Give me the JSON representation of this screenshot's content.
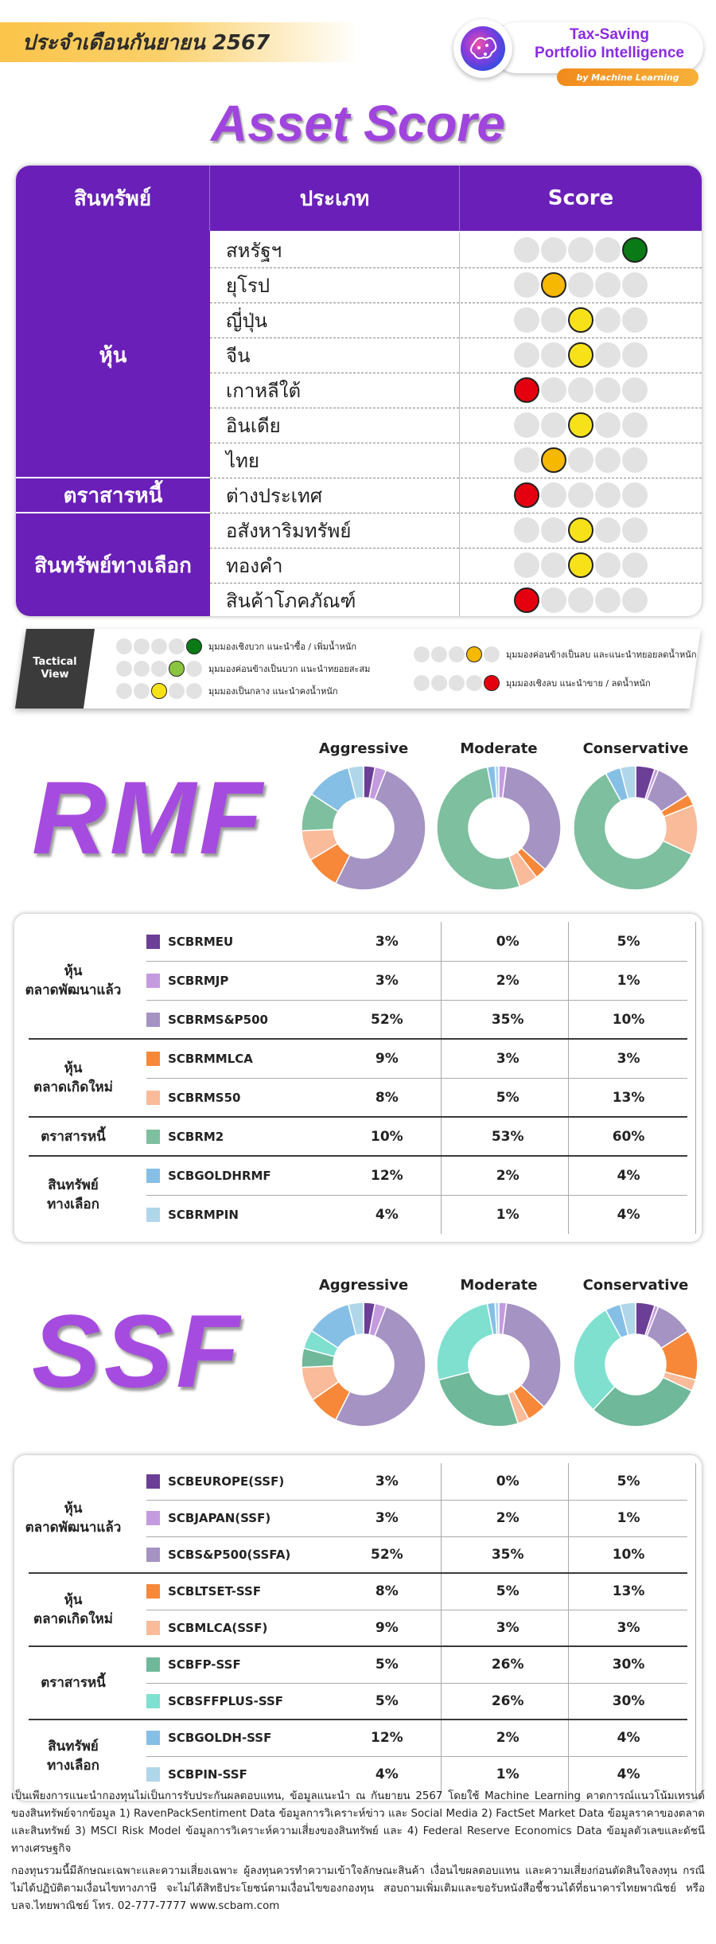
{
  "header": {
    "date_banner": "ประจำเดือนกันยายน 2567",
    "brand_title": [
      "Tax-Saving",
      "Portfolio Intelligence"
    ],
    "brand_sub": "by Machine Learning",
    "brand_logo": "brain-ai-logo"
  },
  "asset_score": {
    "title": "Asset Score",
    "columns": [
      "สินทรัพย์",
      "ประเภท",
      "Score"
    ],
    "groups": [
      {
        "label": "หุ้น",
        "start": 0,
        "count": 7
      },
      {
        "label": "ตราสารหนี้",
        "start": 7,
        "count": 1
      },
      {
        "label": "สินทรัพย์ทางเลือก",
        "start": 8,
        "count": 3
      }
    ],
    "rows": [
      {
        "type": "สหรัฐฯ",
        "score": 5
      },
      {
        "type": "ยุโรป",
        "score": 2
      },
      {
        "type": "ญี่ปุ่น",
        "score": 3
      },
      {
        "type": "จีน",
        "score": 3
      },
      {
        "type": "เกาหลีใต้",
        "score": 1
      },
      {
        "type": "อินเดีย",
        "score": 3
      },
      {
        "type": "ไทย",
        "score": 2
      },
      {
        "type": "ต่างประเทศ",
        "score": 1
      },
      {
        "type": "อสังหาริมทรัพย์",
        "score": 3
      },
      {
        "type": "ทองคำ",
        "score": 3
      },
      {
        "type": "สินค้าโภคภัณฑ์",
        "score": 1
      }
    ],
    "score_colors": {
      "1": "#e5000f",
      "2": "#f6b800",
      "3": "#f7e21a",
      "4": "#8bc53f",
      "5": "#0a7a16"
    }
  },
  "legend": {
    "tag": "Tactical View",
    "items": [
      {
        "score": 5,
        "text": "มุมมองเชิงบวก แนะนำซื้อ / เพิ่มน้ำหนัก"
      },
      {
        "score": 4,
        "text": "มุมมองค่อนข้างเป็นบวก แนะนำทยอยสะสม"
      },
      {
        "score": 3,
        "text": "มุมมองเป็นกลาง แนะนำคงน้ำหนัก"
      },
      {
        "score": 2,
        "text": "มุมมองค่อนข้างเป็นลบ และแนะนำทยอยลดน้ำหนัก"
      },
      {
        "score": 1,
        "text": "มุมมองเชิงลบ แนะนำขาย / ลดน้ำหนัก"
      }
    ]
  },
  "funds": [
    {
      "title": "RMF",
      "profiles": [
        "Aggressive",
        "Moderate",
        "Conservative"
      ],
      "groups": [
        {
          "label": "หุ้น\nตลาดพัฒนาแล้ว",
          "start": 0,
          "count": 3
        },
        {
          "label": "หุ้น\nตลาดเกิดใหม่",
          "start": 3,
          "count": 2
        },
        {
          "label": "ตราสารหนี้",
          "start": 5,
          "count": 1
        },
        {
          "label": "สินทรัพย์\nทางเลือก",
          "start": 6,
          "count": 2
        }
      ],
      "rows": [
        {
          "code": "SCBRMEU",
          "color": "#6b3f96",
          "values": [
            "3%",
            "0%",
            "5%"
          ]
        },
        {
          "code": "SCBRMJP",
          "color": "#c49bdf",
          "values": [
            "3%",
            "2%",
            "1%"
          ]
        },
        {
          "code": "SCBRMS&P500",
          "color": "#a593c3",
          "values": [
            "52%",
            "35%",
            "10%"
          ]
        },
        {
          "code": "SCBRMMLCA",
          "color": "#f7883a",
          "values": [
            "9%",
            "3%",
            "3%"
          ]
        },
        {
          "code": "SCBRMS50",
          "color": "#f9bb9a",
          "values": [
            "8%",
            "5%",
            "13%"
          ]
        },
        {
          "code": "SCBRM2",
          "color": "#7dbf9e",
          "values": [
            "10%",
            "53%",
            "60%"
          ]
        },
        {
          "code": "SCBGOLDHRMF",
          "color": "#86bfe6",
          "values": [
            "12%",
            "2%",
            "4%"
          ]
        },
        {
          "code": "SCBRMPIN",
          "color": "#b0d6ea",
          "values": [
            "4%",
            "1%",
            "4%"
          ]
        }
      ]
    },
    {
      "title": "SSF",
      "profiles": [
        "Aggressive",
        "Moderate",
        "Conservative"
      ],
      "groups": [
        {
          "label": "หุ้น\nตลาดพัฒนาแล้ว",
          "start": 0,
          "count": 3
        },
        {
          "label": "หุ้น\nตลาดเกิดใหม่",
          "start": 3,
          "count": 2
        },
        {
          "label": "ตราสารหนี้",
          "start": 5,
          "count": 2
        },
        {
          "label": "สินทรัพย์\nทางเลือก",
          "start": 7,
          "count": 2
        }
      ],
      "rows": [
        {
          "code": "SCBEUROPE(SSF)",
          "color": "#6b3f96",
          "values": [
            "3%",
            "0%",
            "5%"
          ]
        },
        {
          "code": "SCBJAPAN(SSF)",
          "color": "#c49bdf",
          "values": [
            "3%",
            "2%",
            "1%"
          ]
        },
        {
          "code": "SCBS&P500(SSFA)",
          "color": "#a593c3",
          "values": [
            "52%",
            "35%",
            "10%"
          ]
        },
        {
          "code": "SCBLTSET-SSF",
          "color": "#f7883a",
          "values": [
            "8%",
            "5%",
            "13%"
          ]
        },
        {
          "code": "SCBMLCA(SSF)",
          "color": "#f9bb9a",
          "values": [
            "9%",
            "3%",
            "3%"
          ]
        },
        {
          "code": "SCBFP-SSF",
          "color": "#6fb89a",
          "values": [
            "5%",
            "26%",
            "30%"
          ]
        },
        {
          "code": "SCBSFFPLUS-SSF",
          "color": "#7fe0d0",
          "values": [
            "5%",
            "26%",
            "30%"
          ]
        },
        {
          "code": "SCBGOLDH-SSF",
          "color": "#86bfe6",
          "values": [
            "12%",
            "2%",
            "4%"
          ]
        },
        {
          "code": "SCBPIN-SSF",
          "color": "#b0d6ea",
          "values": [
            "4%",
            "1%",
            "4%"
          ]
        }
      ]
    }
  ],
  "chart_data": [
    {
      "type": "pie",
      "title": "Aggressive",
      "labels": [
        "SCBRMEU",
        "SCBRMJP",
        "SCBRMS&P500",
        "SCBRMMLCA",
        "SCBRMS50",
        "SCBRM2",
        "SCBGOLDHRMF",
        "SCBRMPIN"
      ],
      "values": [
        3,
        3,
        52,
        9,
        8,
        10,
        12,
        4
      ]
    },
    {
      "type": "pie",
      "title": "Moderate",
      "labels": [
        "SCBRMEU",
        "SCBRMJP",
        "SCBRMS&P500",
        "SCBRMMLCA",
        "SCBRMS50",
        "SCBRM2",
        "SCBGOLDHRMF",
        "SCBRMPIN"
      ],
      "values": [
        0,
        2,
        35,
        3,
        5,
        53,
        2,
        1
      ]
    },
    {
      "type": "pie",
      "title": "Conservative",
      "labels": [
        "SCBRMEU",
        "SCBRMJP",
        "SCBRMS&P500",
        "SCBRMMLCA",
        "SCBRMS50",
        "SCBRM2",
        "SCBGOLDHRMF",
        "SCBRMPIN"
      ],
      "values": [
        5,
        1,
        10,
        3,
        13,
        60,
        4,
        4
      ]
    },
    {
      "type": "pie",
      "title": "Aggressive",
      "labels": [
        "SCBEUROPE(SSF)",
        "SCBJAPAN(SSF)",
        "SCBS&P500(SSFA)",
        "SCBLTSET-SSF",
        "SCBMLCA(SSF)",
        "SCBFP-SSF",
        "SCBSFFPLUS-SSF",
        "SCBGOLDH-SSF",
        "SCBPIN-SSF"
      ],
      "values": [
        3,
        3,
        52,
        8,
        9,
        5,
        5,
        12,
        4
      ]
    },
    {
      "type": "pie",
      "title": "Moderate",
      "labels": [
        "SCBEUROPE(SSF)",
        "SCBJAPAN(SSF)",
        "SCBS&P500(SSFA)",
        "SCBLTSET-SSF",
        "SCBMLCA(SSF)",
        "SCBFP-SSF",
        "SCBSFFPLUS-SSF",
        "SCBGOLDH-SSF",
        "SCBPIN-SSF"
      ],
      "values": [
        0,
        2,
        35,
        5,
        3,
        26,
        26,
        2,
        1
      ]
    },
    {
      "type": "pie",
      "title": "Conservative",
      "labels": [
        "SCBEUROPE(SSF)",
        "SCBJAPAN(SSF)",
        "SCBS&P500(SSFA)",
        "SCBLTSET-SSF",
        "SCBMLCA(SSF)",
        "SCBFP-SSF",
        "SCBSFFPLUS-SSF",
        "SCBGOLDH-SSF",
        "SCBPIN-SSF"
      ],
      "values": [
        5,
        1,
        10,
        13,
        3,
        30,
        30,
        4,
        4
      ]
    }
  ],
  "disclaimer": [
    "เป็นเพียงการแนะนำกองทุนไม่เป็นการรับประกันผลตอบแทน, ข้อมูลแนะนำ ณ กันยายน 2567 โดยใช้ Machine Learning คาดการณ์แนวโน้มเทรนด์ของสินทรัพย์จากข้อมูล 1) RavenPackSentiment Data ข้อมูลการวิเคราะห์ข่าว และ Social Media 2) FactSet Market Data ข้อมูลราคาของตลาด และสินทรัพย์ 3) MSCI Risk Model ข้อมูลการวิเคราะห์ความเสี่ยงของสินทรัพย์ และ 4) Federal Reserve Economics Data ข้อมูลตัวเลขและดัชนีทางเศรษฐกิจ",
    "กองทุนรวมนี้มีลักษณะเฉพาะและความเสี่ยงเฉพาะ ผู้ลงทุนควรทำความเข้าใจลักษณะสินค้า เงื่อนไขผลตอบแทน และความเสี่ยงก่อนตัดสินใจลงทุน กรณีไม่ได้ปฏิบัติตามเงื่อนไขทางภาษี จะไม่ได้สิทธิประโยชน์ตามเงื่อนไขของกองทุน สอบถามเพิ่มเติมและขอรับหนังสือชี้ชวนได้ที่ธนาคารไทยพาณิชย์ หรือ บลจ.ไทยพาณิชย์ โทร. 02-777-7777  www.scbam.com"
  ]
}
